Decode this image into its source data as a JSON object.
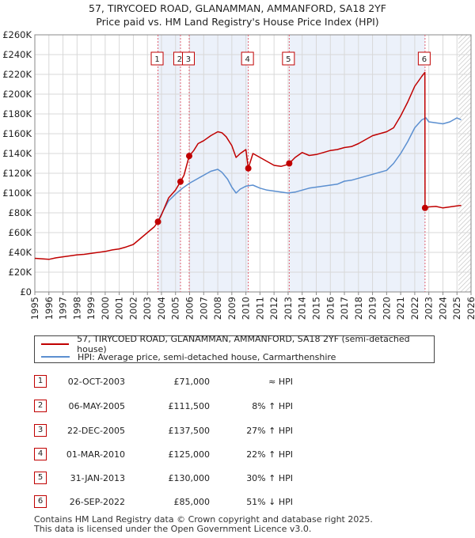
{
  "title": {
    "line1": "57, TIRYCOED ROAD, GLANAMMAN, AMMANFORD, SA18 2YF",
    "line2": "Price paid vs. HM Land Registry's House Price Index (HPI)"
  },
  "colors": {
    "property": "#c00000",
    "hpi": "#5b8fd0",
    "shade": "#dde6f5",
    "grid": "#d8d8d8"
  },
  "legend": {
    "property": "57, TIRYCOED ROAD, GLANAMMAN, AMMANFORD, SA18 2YF (semi-detached house)",
    "hpi": "HPI: Average price, semi-detached house, Carmarthenshire"
  },
  "transactions": [
    {
      "num": "1",
      "date": "02-OCT-2003",
      "price": "£71,000",
      "hpi": "≈ HPI"
    },
    {
      "num": "2",
      "date": "06-MAY-2005",
      "price": "£111,500",
      "hpi": "8% ↑ HPI"
    },
    {
      "num": "3",
      "date": "22-DEC-2005",
      "price": "£137,500",
      "hpi": "27% ↑ HPI"
    },
    {
      "num": "4",
      "date": "01-MAR-2010",
      "price": "£125,000",
      "hpi": "22% ↑ HPI"
    },
    {
      "num": "5",
      "date": "31-JAN-2013",
      "price": "£130,000",
      "hpi": "30% ↑ HPI"
    },
    {
      "num": "6",
      "date": "26-SEP-2022",
      "price": "£85,000",
      "hpi": "51% ↓ HPI"
    }
  ],
  "footer": {
    "line1": "Contains HM Land Registry data © Crown copyright and database right 2025.",
    "line2": "This data is licensed under the Open Government Licence v3.0."
  },
  "chart_data": {
    "type": "line",
    "xlim": [
      1995,
      2026
    ],
    "ylim": [
      0,
      260000
    ],
    "x_ticks": [
      "1995",
      "1996",
      "1997",
      "1998",
      "1999",
      "2000",
      "2001",
      "2002",
      "2003",
      "2004",
      "2005",
      "2006",
      "2007",
      "2008",
      "2009",
      "2010",
      "2011",
      "2012",
      "2013",
      "2014",
      "2015",
      "2016",
      "2017",
      "2018",
      "2019",
      "2020",
      "2021",
      "2022",
      "2023",
      "2024",
      "2025",
      "2026"
    ],
    "y_ticks": [
      {
        "value": 0,
        "label": "£0"
      },
      {
        "value": 20000,
        "label": "£20K"
      },
      {
        "value": 40000,
        "label": "£40K"
      },
      {
        "value": 60000,
        "label": "£60K"
      },
      {
        "value": 80000,
        "label": "£80K"
      },
      {
        "value": 100000,
        "label": "£100K"
      },
      {
        "value": 120000,
        "label": "£120K"
      },
      {
        "value": 140000,
        "label": "£140K"
      },
      {
        "value": 160000,
        "label": "£160K"
      },
      {
        "value": 180000,
        "label": "£180K"
      },
      {
        "value": 200000,
        "label": "£200K"
      },
      {
        "value": 220000,
        "label": "£220K"
      },
      {
        "value": 240000,
        "label": "£240K"
      },
      {
        "value": 260000,
        "label": "£260K"
      }
    ],
    "sales": [
      {
        "num": "1",
        "x": 2003.75,
        "y": 71000
      },
      {
        "num": "2",
        "x": 2005.35,
        "y": 111500
      },
      {
        "num": "3",
        "x": 2005.97,
        "y": 137500
      },
      {
        "num": "4",
        "x": 2010.17,
        "y": 125000
      },
      {
        "num": "5",
        "x": 2013.08,
        "y": 130000
      },
      {
        "num": "6",
        "x": 2022.73,
        "y": 85000
      }
    ],
    "forecast_from": 2025.1,
    "series": [
      {
        "name": "57, TIRYCOED ROAD, GLANAMMAN, AMMANFORD, SA18 2YF (semi-detached house)",
        "color": "#c00000",
        "points": [
          [
            1995,
            34000
          ],
          [
            1995.5,
            33500
          ],
          [
            1996,
            33000
          ],
          [
            1996.5,
            34500
          ],
          [
            1997,
            35500
          ],
          [
            1997.5,
            36500
          ],
          [
            1998,
            37500
          ],
          [
            1998.5,
            38000
          ],
          [
            1999,
            39000
          ],
          [
            1999.5,
            40000
          ],
          [
            2000,
            41000
          ],
          [
            2000.5,
            42500
          ],
          [
            2001,
            43500
          ],
          [
            2001.5,
            45500
          ],
          [
            2002,
            48000
          ],
          [
            2002.5,
            54000
          ],
          [
            2003,
            60000
          ],
          [
            2003.5,
            66000
          ],
          [
            2003.75,
            71000
          ],
          [
            2004,
            78000
          ],
          [
            2004.5,
            95000
          ],
          [
            2005,
            103000
          ],
          [
            2005.35,
            111500
          ],
          [
            2005.6,
            118000
          ],
          [
            2005.97,
            137500
          ],
          [
            2006.3,
            143000
          ],
          [
            2006.6,
            150000
          ],
          [
            2007,
            153000
          ],
          [
            2007.5,
            158000
          ],
          [
            2008,
            162000
          ],
          [
            2008.3,
            161000
          ],
          [
            2008.6,
            157000
          ],
          [
            2009,
            148000
          ],
          [
            2009.3,
            136000
          ],
          [
            2009.6,
            140000
          ],
          [
            2010,
            144000
          ],
          [
            2010.17,
            125000
          ],
          [
            2010.5,
            140000
          ],
          [
            2011,
            136000
          ],
          [
            2011.5,
            132000
          ],
          [
            2012,
            128000
          ],
          [
            2012.5,
            127000
          ],
          [
            2013,
            129000
          ],
          [
            2013.08,
            130000
          ],
          [
            2013.5,
            136000
          ],
          [
            2014,
            141000
          ],
          [
            2014.5,
            138000
          ],
          [
            2015,
            139000
          ],
          [
            2015.5,
            141000
          ],
          [
            2016,
            143000
          ],
          [
            2016.5,
            144000
          ],
          [
            2017,
            146000
          ],
          [
            2017.5,
            147000
          ],
          [
            2018,
            150000
          ],
          [
            2018.5,
            154000
          ],
          [
            2019,
            158000
          ],
          [
            2019.5,
            160000
          ],
          [
            2020,
            162000
          ],
          [
            2020.5,
            166000
          ],
          [
            2021,
            178000
          ],
          [
            2021.5,
            192000
          ],
          [
            2022,
            208000
          ],
          [
            2022.5,
            218000
          ],
          [
            2022.72,
            222000
          ],
          [
            2022.73,
            85000
          ],
          [
            2023,
            86000
          ],
          [
            2023.5,
            86500
          ],
          [
            2024,
            85000
          ],
          [
            2024.5,
            86000
          ],
          [
            2025,
            87000
          ],
          [
            2025.3,
            87500
          ]
        ]
      },
      {
        "name": "HPI: Average price, semi-detached house, Carmarthenshire",
        "color": "#5b8fd0",
        "points": [
          [
            2003.75,
            71000
          ],
          [
            2004,
            79000
          ],
          [
            2004.5,
            92000
          ],
          [
            2005,
            99000
          ],
          [
            2005.5,
            105000
          ],
          [
            2006,
            110000
          ],
          [
            2006.5,
            114000
          ],
          [
            2007,
            118000
          ],
          [
            2007.5,
            122000
          ],
          [
            2008,
            124000
          ],
          [
            2008.3,
            121000
          ],
          [
            2008.7,
            114000
          ],
          [
            2009,
            106000
          ],
          [
            2009.3,
            100000
          ],
          [
            2009.6,
            104000
          ],
          [
            2010,
            107000
          ],
          [
            2010.5,
            108000
          ],
          [
            2011,
            105000
          ],
          [
            2011.5,
            103000
          ],
          [
            2012,
            102000
          ],
          [
            2012.5,
            101000
          ],
          [
            2013,
            100000
          ],
          [
            2013.5,
            101000
          ],
          [
            2014,
            103000
          ],
          [
            2014.5,
            105000
          ],
          [
            2015,
            106000
          ],
          [
            2015.5,
            107000
          ],
          [
            2016,
            108000
          ],
          [
            2016.5,
            109000
          ],
          [
            2017,
            112000
          ],
          [
            2017.5,
            113000
          ],
          [
            2018,
            115000
          ],
          [
            2018.5,
            117000
          ],
          [
            2019,
            119000
          ],
          [
            2019.5,
            121000
          ],
          [
            2020,
            123000
          ],
          [
            2020.5,
            130000
          ],
          [
            2021,
            140000
          ],
          [
            2021.5,
            152000
          ],
          [
            2022,
            166000
          ],
          [
            2022.5,
            174000
          ],
          [
            2022.8,
            176000
          ],
          [
            2023,
            172000
          ],
          [
            2023.5,
            171000
          ],
          [
            2024,
            170000
          ],
          [
            2024.5,
            172000
          ],
          [
            2025,
            176000
          ],
          [
            2025.3,
            174000
          ]
        ]
      }
    ]
  }
}
